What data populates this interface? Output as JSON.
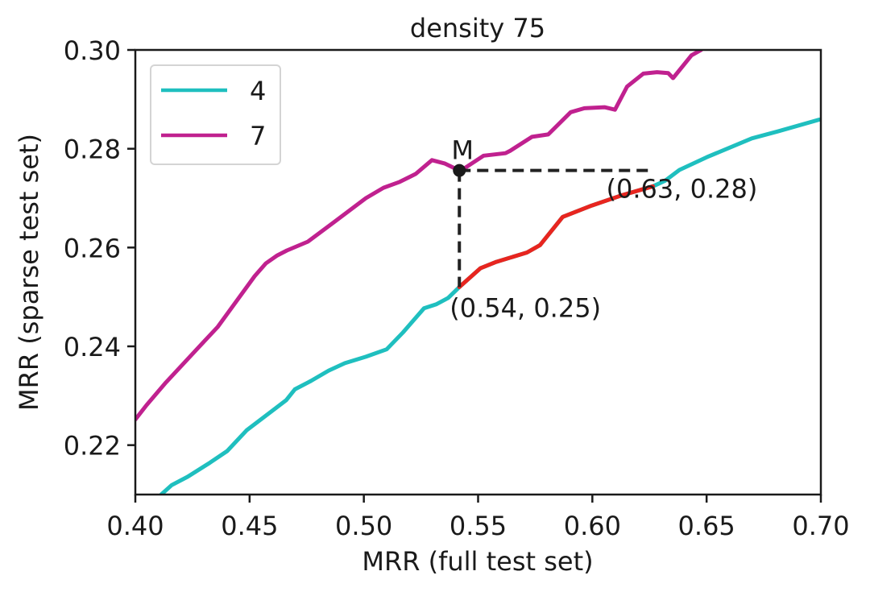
{
  "chart_data": {
    "type": "line",
    "title": "density 75",
    "xlabel": "MRR (full test set)",
    "ylabel": "MRR (sparse test set)",
    "xlim": [
      0.4,
      0.7
    ],
    "ylim": [
      0.21,
      0.3
    ],
    "xticks": [
      "0.40",
      "0.45",
      "0.50",
      "0.55",
      "0.60",
      "0.65",
      "0.70"
    ],
    "xtick_values": [
      0.4,
      0.45,
      0.5,
      0.55,
      0.6,
      0.65,
      0.7
    ],
    "yticks": [
      "0.22",
      "0.24",
      "0.26",
      "0.28",
      "0.30"
    ],
    "ytick_values": [
      0.22,
      0.24,
      0.26,
      0.28,
      0.3
    ],
    "grid": false,
    "legend_position": "top-left",
    "series": [
      {
        "name": "4",
        "color": "#1fbfbf",
        "x": [
          0.4113,
          0.4159,
          0.4229,
          0.4325,
          0.4402,
          0.4487,
          0.466,
          0.4698,
          0.4769,
          0.4846,
          0.4917,
          0.5009,
          0.51,
          0.5171,
          0.5263,
          0.5316,
          0.5369,
          0.5418,
          0.551,
          0.558,
          0.5714,
          0.5771,
          0.587,
          0.5997,
          0.6131,
          0.6265,
          0.6318,
          0.6381,
          0.6501,
          0.6698,
          0.6811,
          0.6993
        ],
        "y": [
          0.21,
          0.2119,
          0.2136,
          0.2164,
          0.2188,
          0.223,
          0.2291,
          0.2313,
          0.233,
          0.2351,
          0.2366,
          0.2379,
          0.2394,
          0.2428,
          0.2477,
          0.2485,
          0.2498,
          0.252,
          0.2558,
          0.2571,
          0.259,
          0.2605,
          0.2662,
          0.2685,
          0.2706,
          0.2724,
          0.2735,
          0.2757,
          0.2783,
          0.2821,
          0.2835,
          0.2859
        ]
      },
      {
        "name": "7",
        "color": "#c0218f",
        "x": [
          0.4,
          0.4049,
          0.4134,
          0.4275,
          0.436,
          0.4522,
          0.4571,
          0.4621,
          0.4663,
          0.4755,
          0.4868,
          0.5009,
          0.5086,
          0.5157,
          0.5227,
          0.5298,
          0.5355,
          0.5422,
          0.5524,
          0.562,
          0.5641,
          0.5736,
          0.5807,
          0.5905,
          0.5965,
          0.6053,
          0.6099,
          0.6152,
          0.6223,
          0.6283,
          0.6332,
          0.6353,
          0.6434,
          0.6476
        ],
        "y": [
          0.2252,
          0.2281,
          0.2327,
          0.2397,
          0.2439,
          0.2542,
          0.2568,
          0.2584,
          0.2594,
          0.2612,
          0.2651,
          0.27,
          0.2721,
          0.2733,
          0.2749,
          0.2777,
          0.277,
          0.2755,
          0.2786,
          0.2791,
          0.2796,
          0.2824,
          0.2829,
          0.2874,
          0.2882,
          0.2884,
          0.2879,
          0.2926,
          0.2952,
          0.2955,
          0.2953,
          0.2943,
          0.2989,
          0.3
        ]
      }
    ],
    "highlight": {
      "color": "#e8251f",
      "x": [
        0.5418,
        0.551,
        0.558,
        0.5714,
        0.5771,
        0.587,
        0.5997,
        0.6131,
        0.6265
      ],
      "y": [
        0.252,
        0.2558,
        0.2571,
        0.259,
        0.2605,
        0.2662,
        0.2685,
        0.2706,
        0.2724
      ]
    },
    "marker": {
      "label": "M",
      "x": 0.5418,
      "y": 0.2756,
      "color": "#1a1a1a"
    },
    "guides": {
      "color": "#222222",
      "vertical": {
        "x": 0.5418,
        "y_from": 0.252,
        "y_to": 0.2756
      },
      "horizontal": {
        "y": 0.2756,
        "x_from": 0.5418,
        "x_to": 0.6265
      }
    },
    "annotations": [
      {
        "text": "(0.54, 0.25)",
        "x": 0.5418,
        "y": 0.252
      },
      {
        "text": "(0.63, 0.28)",
        "x": 0.6265,
        "y": 0.2756
      }
    ]
  }
}
